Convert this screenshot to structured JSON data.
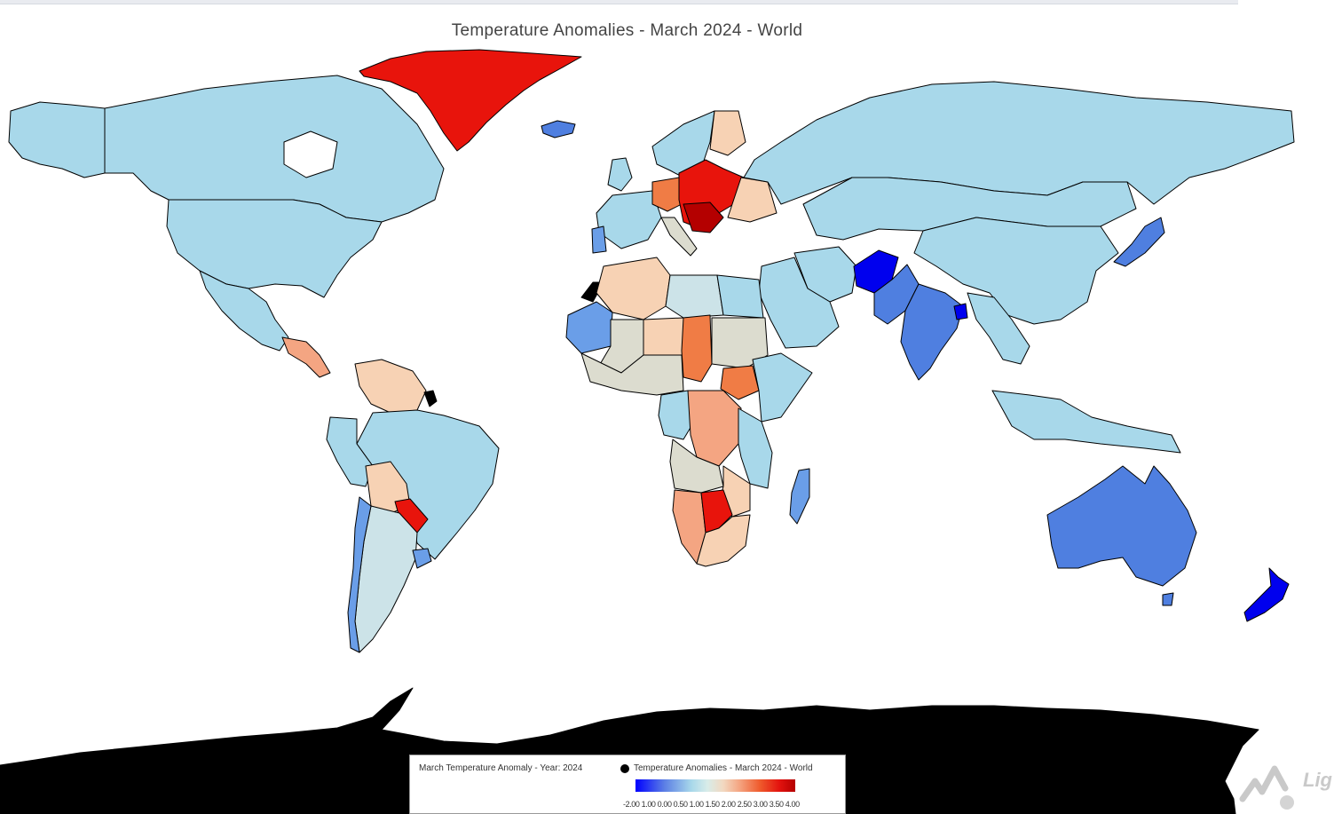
{
  "title": "Temperature Anomalies - March 2024 - World",
  "legend": {
    "layer_label": "March Temperature Anomaly - Year: 2024",
    "series_label": "Temperature Anomalies - March 2024 - World",
    "scale_ticks": "-2.00 1.00 0.00 0.50 1.00 1.50 2.00 2.50 3.00 3.50 4.00",
    "scale_min": -2.0,
    "scale_max": 4.0
  },
  "logo": {
    "text": "Lig"
  },
  "colors": {
    "lightblue": "#a8d8ea",
    "paleblue": "#cce3e8",
    "beige": "#dcdccf",
    "peach": "#f7d2b4",
    "salmon": "#f4a582",
    "orange": "#f07c45",
    "red": "#e8140c",
    "darkred": "#b40000",
    "blue": "#4f7fe0",
    "darkblue": "#0000ee",
    "midblue": "#6a9ee8",
    "black": "#000000"
  },
  "regions": [
    {
      "name": "Greenland",
      "color": "red"
    },
    {
      "name": "Canada",
      "color": "lightblue"
    },
    {
      "name": "Alaska",
      "color": "lightblue"
    },
    {
      "name": "United States",
      "color": "lightblue"
    },
    {
      "name": "Mexico",
      "color": "lightblue"
    },
    {
      "name": "Central America",
      "color": "salmon"
    },
    {
      "name": "Venezuela",
      "color": "peach"
    },
    {
      "name": "French Guiana",
      "color": "black"
    },
    {
      "name": "Brazil",
      "color": "lightblue"
    },
    {
      "name": "Peru",
      "color": "lightblue"
    },
    {
      "name": "Bolivia",
      "color": "peach"
    },
    {
      "name": "Paraguay",
      "color": "red"
    },
    {
      "name": "Argentina",
      "color": "paleblue"
    },
    {
      "name": "Chile",
      "color": "midblue"
    },
    {
      "name": "Uruguay",
      "color": "midblue"
    },
    {
      "name": "Iceland",
      "color": "blue"
    },
    {
      "name": "Scandinavia",
      "color": "lightblue"
    },
    {
      "name": "Finland",
      "color": "peach"
    },
    {
      "name": "Poland / Central Europe",
      "color": "red"
    },
    {
      "name": "Germany",
      "color": "orange"
    },
    {
      "name": "Ukraine",
      "color": "peach"
    },
    {
      "name": "Portugal",
      "color": "midblue"
    },
    {
      "name": "Spain / France",
      "color": "lightblue"
    },
    {
      "name": "Algeria",
      "color": "peach"
    },
    {
      "name": "Libya",
      "color": "paleblue"
    },
    {
      "name": "Niger",
      "color": "peach"
    },
    {
      "name": "Chad",
      "color": "orange"
    },
    {
      "name": "Sudan",
      "color": "beige"
    },
    {
      "name": "DR Congo",
      "color": "salmon"
    },
    {
      "name": "Ethiopia",
      "color": "orange"
    },
    {
      "name": "Angola",
      "color": "beige"
    },
    {
      "name": "Namibia",
      "color": "salmon"
    },
    {
      "name": "Botswana",
      "color": "red"
    },
    {
      "name": "South Africa",
      "color": "peach"
    },
    {
      "name": "Madagascar",
      "color": "midblue"
    },
    {
      "name": "Russia",
      "color": "lightblue"
    },
    {
      "name": "Kazakhstan / Mongolia",
      "color": "lightblue"
    },
    {
      "name": "China",
      "color": "lightblue"
    },
    {
      "name": "Iran",
      "color": "lightblue"
    },
    {
      "name": "Afghanistan",
      "color": "darkblue"
    },
    {
      "name": "Pakistan",
      "color": "blue"
    },
    {
      "name": "India",
      "color": "blue"
    },
    {
      "name": "Bangladesh",
      "color": "darkblue"
    },
    {
      "name": "Japan",
      "color": "blue"
    },
    {
      "name": "Australia",
      "color": "blue"
    },
    {
      "name": "New Zealand",
      "color": "darkblue"
    },
    {
      "name": "Antarctica",
      "color": "black"
    }
  ]
}
